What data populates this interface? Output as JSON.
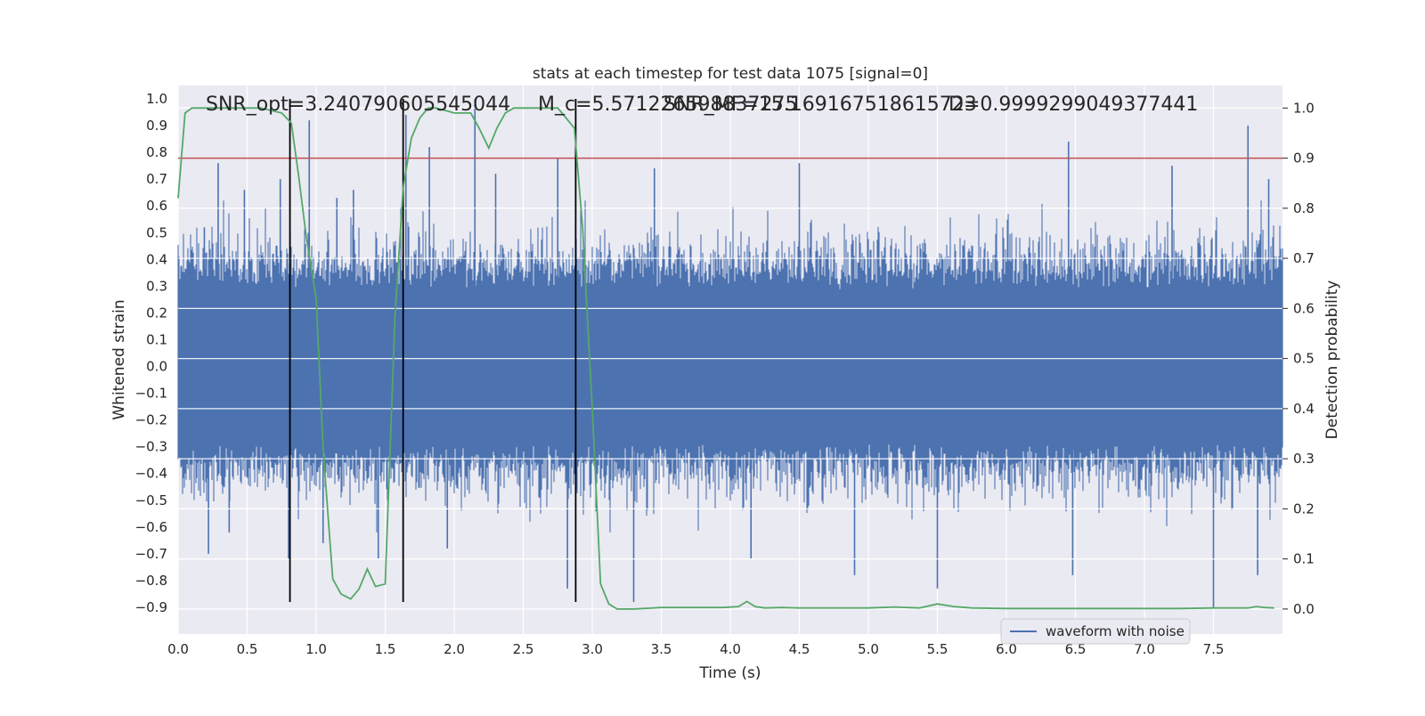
{
  "chart_data": {
    "type": "line",
    "title": "stats at each timestep for test data 1075 [signal=0]",
    "xlabel": "Time (s)",
    "ylabel": "Whitened strain",
    "y2label": "Detection probability",
    "xlim": [
      0.0,
      8.0
    ],
    "ylim": [
      -1.0,
      1.05
    ],
    "y2lim": [
      -0.05,
      1.045
    ],
    "grid": true,
    "legend_position": "bottom-right",
    "x_ticks": [
      "0.0",
      "0.5",
      "1.0",
      "1.5",
      "2.0",
      "2.5",
      "3.0",
      "3.5",
      "4.0",
      "4.5",
      "5.0",
      "5.5",
      "6.0",
      "6.5",
      "7.0",
      "7.5"
    ],
    "y_ticks": [
      "1.0",
      "0.9",
      "0.8",
      "0.7",
      "0.6",
      "0.5",
      "0.4",
      "0.3",
      "0.2",
      "0.1",
      "0.0",
      "−0.1",
      "−0.2",
      "−0.3",
      "−0.4",
      "−0.5",
      "−0.6",
      "−0.7",
      "−0.8",
      "−0.9"
    ],
    "y2_ticks": [
      "1.0",
      "0.9",
      "0.8",
      "0.7",
      "0.6",
      "0.5",
      "0.4",
      "0.3",
      "0.2",
      "0.1",
      "0.0"
    ],
    "annotations": [
      {
        "text": "SNR_opt=3.240790605545044"
      },
      {
        "text": "M_c=5.571226598837275"
      },
      {
        "text": "SNR_MF=15.169167518615723"
      },
      {
        "text": "D=0.9999299049377441"
      }
    ],
    "series": [
      {
        "name": "waveform with noise",
        "color": "#4c72b0",
        "kind": "noise",
        "core_amplitude": 0.32,
        "spikes": [
          {
            "x": 0.19,
            "y": 0.52
          },
          {
            "x": 0.22,
            "y": -0.7
          },
          {
            "x": 0.29,
            "y": 0.76
          },
          {
            "x": 0.37,
            "y": -0.62
          },
          {
            "x": 0.48,
            "y": 0.66
          },
          {
            "x": 0.74,
            "y": 0.7
          },
          {
            "x": 0.8,
            "y": -0.72
          },
          {
            "x": 0.95,
            "y": 0.92
          },
          {
            "x": 1.05,
            "y": -0.66
          },
          {
            "x": 1.15,
            "y": 0.63
          },
          {
            "x": 1.27,
            "y": 0.66
          },
          {
            "x": 1.45,
            "y": -0.72
          },
          {
            "x": 1.65,
            "y": 0.94
          },
          {
            "x": 1.82,
            "y": 0.82
          },
          {
            "x": 1.95,
            "y": -0.68
          },
          {
            "x": 2.15,
            "y": 1.0
          },
          {
            "x": 2.3,
            "y": 0.72
          },
          {
            "x": 2.75,
            "y": 0.78
          },
          {
            "x": 2.82,
            "y": -0.83
          },
          {
            "x": 3.3,
            "y": -0.88
          },
          {
            "x": 3.45,
            "y": 0.74
          },
          {
            "x": 4.15,
            "y": -0.72
          },
          {
            "x": 4.5,
            "y": 0.76
          },
          {
            "x": 4.9,
            "y": -0.78
          },
          {
            "x": 5.5,
            "y": -0.83
          },
          {
            "x": 6.45,
            "y": 0.84
          },
          {
            "x": 6.48,
            "y": -0.78
          },
          {
            "x": 7.2,
            "y": 0.75
          },
          {
            "x": 7.5,
            "y": -0.9
          },
          {
            "x": 7.75,
            "y": 0.9
          },
          {
            "x": 7.82,
            "y": -0.78
          },
          {
            "x": 7.9,
            "y": 0.7
          }
        ]
      },
      {
        "name": "",
        "color": "#55a868",
        "axis": "right",
        "x": [
          0.0,
          0.05,
          0.1,
          0.2,
          0.4,
          0.6,
          0.75,
          0.82,
          0.87,
          0.93,
          1.0,
          1.05,
          1.12,
          1.18,
          1.25,
          1.31,
          1.37,
          1.43,
          1.5,
          1.57,
          1.63,
          1.69,
          1.75,
          1.81,
          1.87,
          2.0,
          2.06,
          2.12,
          2.18,
          2.25,
          2.31,
          2.37,
          2.43,
          2.5,
          2.62,
          2.75,
          2.87,
          2.93,
          3.0,
          3.06,
          3.12,
          3.18,
          3.3,
          3.5,
          3.75,
          3.94,
          4.06,
          4.12,
          4.18,
          4.25,
          4.37,
          4.5,
          4.75,
          5.0,
          5.19,
          5.37,
          5.5,
          5.62,
          5.75,
          6.0,
          6.25,
          6.5,
          6.75,
          7.0,
          7.25,
          7.5,
          7.62,
          7.75,
          7.81,
          7.87,
          7.94
        ],
        "y": [
          0.82,
          0.99,
          1.0,
          1.0,
          1.0,
          1.0,
          0.99,
          0.97,
          0.87,
          0.74,
          0.62,
          0.32,
          0.06,
          0.03,
          0.02,
          0.04,
          0.08,
          0.045,
          0.05,
          0.58,
          0.84,
          0.94,
          0.98,
          1.0,
          1.0,
          0.99,
          0.99,
          0.99,
          0.96,
          0.92,
          0.96,
          0.99,
          1.0,
          1.0,
          1.0,
          1.0,
          0.96,
          0.76,
          0.4,
          0.05,
          0.01,
          0.0,
          0.0,
          0.003,
          0.003,
          0.003,
          0.005,
          0.015,
          0.005,
          0.002,
          0.003,
          0.002,
          0.002,
          0.002,
          0.004,
          0.002,
          0.01,
          0.005,
          0.002,
          0.001,
          0.001,
          0.001,
          0.001,
          0.001,
          0.001,
          0.002,
          0.002,
          0.002,
          0.005,
          0.003,
          0.002
        ]
      }
    ],
    "threshold": {
      "axis": "right",
      "y": 0.9,
      "color": "#c44e52"
    },
    "vlines": [
      {
        "x": 0.81,
        "ymin": -0.88,
        "ymax": 1.0
      },
      {
        "x": 1.63,
        "ymin": -0.88,
        "ymax": 1.0
      },
      {
        "x": 2.88,
        "ymin": -0.88,
        "ymax": 1.0
      }
    ]
  }
}
